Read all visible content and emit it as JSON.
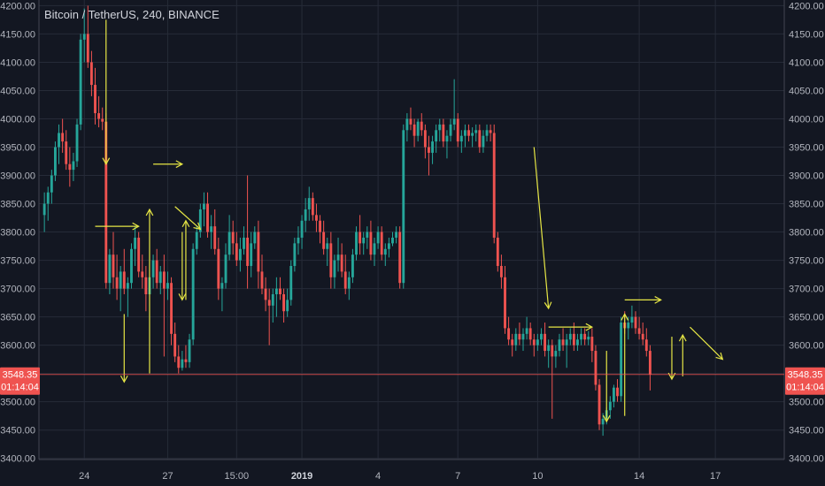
{
  "header": {
    "title": "Bitcoin / TetherUS, 240, BINANCE"
  },
  "colors": {
    "background": "#131722",
    "grid": "#262b38",
    "up": "#26a69a",
    "down": "#ef5350",
    "annotation": "#e6e645",
    "axis_text": "#b2b5be",
    "price_line": "#ef5350"
  },
  "current_price": {
    "price": 3548.35,
    "label": "3548.35",
    "countdown": "01:14:04"
  },
  "chart_data": {
    "type": "candlestick",
    "title": "Bitcoin / TetherUS, 240, BINANCE",
    "y_ticks": [
      3400,
      3450,
      3500,
      3550,
      3600,
      3650,
      3700,
      3750,
      3800,
      3850,
      3900,
      3950,
      4000,
      4050,
      4100,
      4150,
      4200
    ],
    "y_tick_labels": [
      "3400.00",
      "3450.00",
      "3500.00",
      "3550.00",
      "3600.00",
      "3650.00",
      "3700.00",
      "3750.00",
      "3800.00",
      "3850.00",
      "3900.00",
      "3950.00",
      "4000.00",
      "4050.00",
      "4100.00",
      "4150.00",
      "4200.00"
    ],
    "ylim": [
      3398,
      4210
    ],
    "x_ticks": [
      "24",
      "27",
      "15:00",
      "2019",
      "4",
      "7",
      "10",
      "14",
      "17"
    ],
    "x_tick_index": [
      11,
      34,
      53,
      71,
      92,
      114,
      136,
      164,
      185
    ],
    "xlim": [
      -1.5,
      204
    ],
    "grid": true,
    "candles": [
      [
        3830,
        3870,
        3800,
        3850
      ],
      [
        3850,
        3880,
        3820,
        3870
      ],
      [
        3870,
        3910,
        3850,
        3900
      ],
      [
        3900,
        3960,
        3890,
        3950
      ],
      [
        3950,
        3990,
        3920,
        3975
      ],
      [
        3975,
        4000,
        3940,
        3960
      ],
      [
        3960,
        3980,
        3910,
        3920
      ],
      [
        3920,
        3950,
        3880,
        3910
      ],
      [
        3910,
        3940,
        3890,
        3925
      ],
      [
        3925,
        4000,
        3915,
        3990
      ],
      [
        3990,
        4150,
        3980,
        4140
      ],
      [
        4140,
        4195,
        4100,
        4150
      ],
      [
        4150,
        4200,
        4090,
        4100
      ],
      [
        4100,
        4120,
        4040,
        4060
      ],
      [
        4060,
        4090,
        3990,
        4010
      ],
      [
        4010,
        4040,
        3985,
        4000
      ],
      [
        4000,
        4020,
        3980,
        3995
      ],
      [
        3995,
        4010,
        3700,
        3710
      ],
      [
        3710,
        3770,
        3690,
        3760
      ],
      [
        3760,
        3800,
        3700,
        3720
      ],
      [
        3720,
        3760,
        3680,
        3700
      ],
      [
        3700,
        3740,
        3660,
        3730
      ],
      [
        3730,
        3770,
        3690,
        3700
      ],
      [
        3700,
        3720,
        3650,
        3710
      ],
      [
        3710,
        3780,
        3700,
        3770
      ],
      [
        3770,
        3810,
        3740,
        3790
      ],
      [
        3790,
        3800,
        3720,
        3730
      ],
      [
        3730,
        3760,
        3700,
        3720
      ],
      [
        3720,
        3740,
        3660,
        3690
      ],
      [
        3690,
        3730,
        3670,
        3720
      ],
      [
        3720,
        3760,
        3700,
        3750
      ],
      [
        3750,
        3770,
        3700,
        3710
      ],
      [
        3710,
        3740,
        3690,
        3730
      ],
      [
        3730,
        3760,
        3580,
        3700
      ],
      [
        3700,
        3730,
        3680,
        3710
      ],
      [
        3710,
        3720,
        3600,
        3620
      ],
      [
        3620,
        3640,
        3570,
        3580
      ],
      [
        3580,
        3600,
        3550,
        3560
      ],
      [
        3560,
        3590,
        3555,
        3575
      ],
      [
        3575,
        3600,
        3560,
        3570
      ],
      [
        3570,
        3620,
        3560,
        3610
      ],
      [
        3610,
        3780,
        3600,
        3770
      ],
      [
        3770,
        3810,
        3760,
        3800
      ],
      [
        3800,
        3850,
        3790,
        3840
      ],
      [
        3840,
        3870,
        3810,
        3850
      ],
      [
        3850,
        3870,
        3790,
        3800
      ],
      [
        3800,
        3830,
        3770,
        3810
      ],
      [
        3810,
        3840,
        3760,
        3770
      ],
      [
        3770,
        3790,
        3680,
        3700
      ],
      [
        3700,
        3720,
        3660,
        3710
      ],
      [
        3710,
        3780,
        3700,
        3760
      ],
      [
        3760,
        3830,
        3750,
        3800
      ],
      [
        3800,
        3820,
        3760,
        3780
      ],
      [
        3780,
        3800,
        3740,
        3750
      ],
      [
        3750,
        3790,
        3730,
        3770
      ],
      [
        3770,
        3810,
        3760,
        3790
      ],
      [
        3790,
        3900,
        3700,
        3740
      ],
      [
        3740,
        3800,
        3720,
        3780
      ],
      [
        3780,
        3810,
        3770,
        3800
      ],
      [
        3800,
        3820,
        3700,
        3730
      ],
      [
        3730,
        3760,
        3690,
        3700
      ],
      [
        3700,
        3720,
        3660,
        3680
      ],
      [
        3680,
        3700,
        3600,
        3670
      ],
      [
        3670,
        3700,
        3640,
        3690
      ],
      [
        3690,
        3720,
        3650,
        3700
      ],
      [
        3700,
        3720,
        3680,
        3690
      ],
      [
        3690,
        3700,
        3640,
        3660
      ],
      [
        3660,
        3700,
        3650,
        3680
      ],
      [
        3680,
        3750,
        3670,
        3740
      ],
      [
        3740,
        3790,
        3730,
        3780
      ],
      [
        3780,
        3810,
        3760,
        3790
      ],
      [
        3790,
        3830,
        3770,
        3820
      ],
      [
        3820,
        3860,
        3800,
        3840
      ],
      [
        3840,
        3880,
        3820,
        3860
      ],
      [
        3860,
        3870,
        3820,
        3830
      ],
      [
        3830,
        3850,
        3800,
        3820
      ],
      [
        3820,
        3830,
        3780,
        3800
      ],
      [
        3800,
        3820,
        3760,
        3770
      ],
      [
        3770,
        3790,
        3740,
        3780
      ],
      [
        3780,
        3800,
        3700,
        3720
      ],
      [
        3720,
        3760,
        3700,
        3750
      ],
      [
        3750,
        3790,
        3730,
        3760
      ],
      [
        3760,
        3780,
        3720,
        3730
      ],
      [
        3730,
        3760,
        3690,
        3700
      ],
      [
        3700,
        3730,
        3680,
        3720
      ],
      [
        3720,
        3770,
        3710,
        3760
      ],
      [
        3760,
        3810,
        3750,
        3800
      ],
      [
        3800,
        3830,
        3760,
        3780
      ],
      [
        3780,
        3800,
        3760,
        3790
      ],
      [
        3790,
        3810,
        3770,
        3800
      ],
      [
        3800,
        3820,
        3750,
        3760
      ],
      [
        3760,
        3790,
        3740,
        3780
      ],
      [
        3780,
        3810,
        3770,
        3800
      ],
      [
        3800,
        3810,
        3750,
        3760
      ],
      [
        3760,
        3780,
        3740,
        3770
      ],
      [
        3770,
        3790,
        3755,
        3780
      ],
      [
        3780,
        3800,
        3775,
        3790
      ],
      [
        3790,
        3810,
        3780,
        3800
      ],
      [
        3800,
        3810,
        3700,
        3710
      ],
      [
        3710,
        3990,
        3700,
        3980
      ],
      [
        3980,
        4010,
        3960,
        4000
      ],
      [
        4000,
        4020,
        3980,
        3990
      ],
      [
        3990,
        4000,
        3950,
        3970
      ],
      [
        3970,
        4000,
        3960,
        3995
      ],
      [
        3995,
        4010,
        3970,
        3980
      ],
      [
        3980,
        3990,
        3930,
        3950
      ],
      [
        3950,
        3970,
        3900,
        3940
      ],
      [
        3940,
        3970,
        3920,
        3960
      ],
      [
        3960,
        3990,
        3940,
        3980
      ],
      [
        3980,
        4000,
        3960,
        3990
      ],
      [
        3990,
        4000,
        3950,
        3960
      ],
      [
        3960,
        3980,
        3930,
        3970
      ],
      [
        3970,
        4000,
        3960,
        3990
      ],
      [
        3990,
        4070,
        3980,
        4000
      ],
      [
        4000,
        4010,
        3950,
        3960
      ],
      [
        3960,
        3980,
        3940,
        3970
      ],
      [
        3970,
        3990,
        3950,
        3980
      ],
      [
        3980,
        3990,
        3960,
        3970
      ],
      [
        3970,
        3985,
        3950,
        3975
      ],
      [
        3975,
        3990,
        3960,
        3980
      ],
      [
        3980,
        3990,
        3940,
        3950
      ],
      [
        3950,
        3980,
        3940,
        3970
      ],
      [
        3970,
        3990,
        3960,
        3980
      ],
      [
        3980,
        3990,
        3960,
        3975
      ],
      [
        3975,
        3990,
        3780,
        3790
      ],
      [
        3790,
        3800,
        3730,
        3740
      ],
      [
        3740,
        3760,
        3700,
        3720
      ],
      [
        3720,
        3740,
        3620,
        3630
      ],
      [
        3630,
        3650,
        3600,
        3610
      ],
      [
        3610,
        3620,
        3580,
        3600
      ],
      [
        3600,
        3630,
        3590,
        3620
      ],
      [
        3620,
        3640,
        3600,
        3610
      ],
      [
        3610,
        3630,
        3590,
        3620
      ],
      [
        3620,
        3650,
        3610,
        3630
      ],
      [
        3630,
        3640,
        3600,
        3610
      ],
      [
        3610,
        3620,
        3580,
        3600
      ],
      [
        3600,
        3620,
        3590,
        3610
      ],
      [
        3610,
        3630,
        3600,
        3620
      ],
      [
        3620,
        3640,
        3580,
        3590
      ],
      [
        3590,
        3610,
        3560,
        3600
      ],
      [
        3600,
        3610,
        3470,
        3580
      ],
      [
        3580,
        3600,
        3560,
        3590
      ],
      [
        3590,
        3620,
        3580,
        3610
      ],
      [
        3610,
        3630,
        3590,
        3600
      ],
      [
        3600,
        3620,
        3560,
        3610
      ],
      [
        3610,
        3630,
        3600,
        3620
      ],
      [
        3620,
        3640,
        3590,
        3600
      ],
      [
        3600,
        3620,
        3590,
        3610
      ],
      [
        3610,
        3630,
        3600,
        3620
      ],
      [
        3620,
        3630,
        3600,
        3610
      ],
      [
        3610,
        3625,
        3600,
        3615
      ],
      [
        3615,
        3630,
        3570,
        3590
      ],
      [
        3590,
        3600,
        3520,
        3530
      ],
      [
        3530,
        3540,
        3450,
        3460
      ],
      [
        3460,
        3480,
        3440,
        3470
      ],
      [
        3470,
        3490,
        3460,
        3485
      ],
      [
        3485,
        3510,
        3470,
        3500
      ],
      [
        3500,
        3530,
        3490,
        3525
      ],
      [
        3525,
        3540,
        3500,
        3510
      ],
      [
        3510,
        3650,
        3500,
        3640
      ],
      [
        3640,
        3660,
        3620,
        3630
      ],
      [
        3630,
        3650,
        3610,
        3640
      ],
      [
        3640,
        3670,
        3630,
        3650
      ],
      [
        3650,
        3660,
        3620,
        3630
      ],
      [
        3630,
        3650,
        3610,
        3620
      ],
      [
        3620,
        3640,
        3600,
        3610
      ],
      [
        3610,
        3630,
        3580,
        3590
      ],
      [
        3590,
        3600,
        3520,
        3548
      ]
    ]
  },
  "annotations": {
    "arrows": [
      [
        17,
        4175,
        17,
        3920
      ],
      [
        14,
        3810,
        26,
        3810
      ],
      [
        22,
        3655,
        22,
        3535
      ],
      [
        30,
        3920,
        38,
        3920
      ],
      [
        29,
        3550,
        29,
        3840
      ],
      [
        36,
        3845,
        43,
        3805
      ],
      [
        38,
        3800,
        38,
        3680
      ],
      [
        39,
        3680,
        39,
        3820
      ],
      [
        135,
        3950,
        139,
        3665
      ],
      [
        139,
        3632,
        151,
        3632
      ],
      [
        155,
        3590,
        155,
        3465
      ],
      [
        160,
        3475,
        160,
        3655
      ],
      [
        160,
        3680,
        170,
        3680
      ],
      [
        173,
        3615,
        173,
        3540
      ],
      [
        176,
        3545,
        176,
        3618
      ],
      [
        178,
        3632,
        187,
        3575
      ]
    ]
  }
}
